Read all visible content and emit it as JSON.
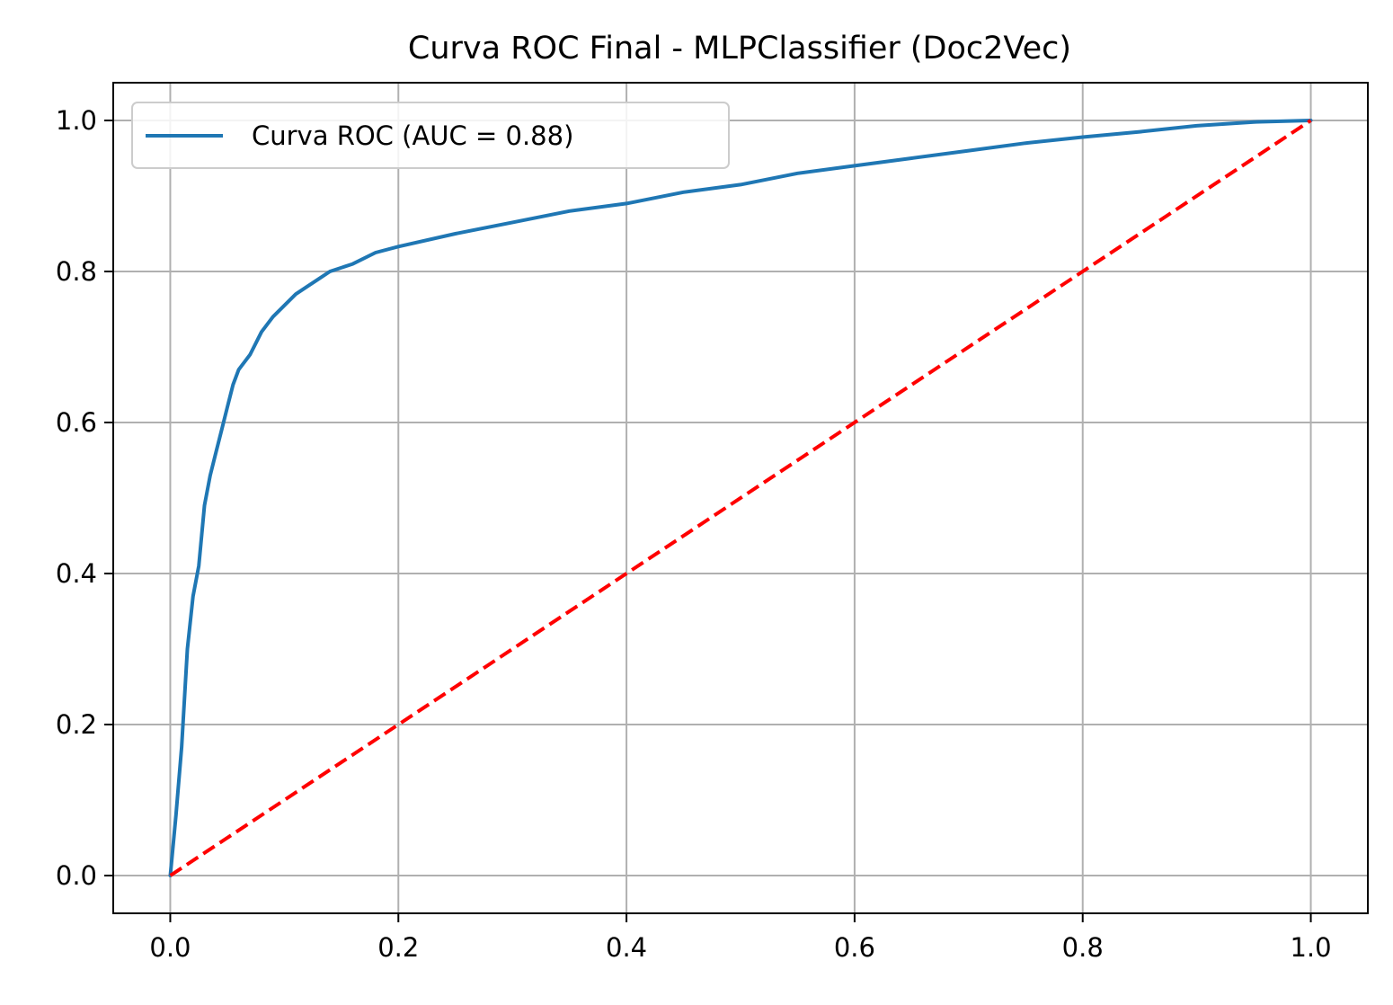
{
  "chart_data": {
    "type": "line",
    "title": "Curva ROC Final - MLPClassifier (Doc2Vec)",
    "xlabel": "",
    "ylabel": "",
    "xlim": [
      -0.05,
      1.05
    ],
    "ylim": [
      -0.05,
      1.05
    ],
    "xticks": [
      "0.0",
      "0.2",
      "0.4",
      "0.6",
      "0.8",
      "1.0"
    ],
    "yticks": [
      "0.0",
      "0.2",
      "0.4",
      "0.6",
      "0.8",
      "1.0"
    ],
    "grid": true,
    "legend_position": "top-left",
    "series": [
      {
        "name": "Curva ROC (AUC = 0.88)",
        "color": "#1f77b4",
        "style": "solid",
        "x": [
          0.0,
          0.005,
          0.01,
          0.015,
          0.02,
          0.025,
          0.03,
          0.035,
          0.04,
          0.045,
          0.05,
          0.055,
          0.06,
          0.07,
          0.08,
          0.09,
          0.1,
          0.11,
          0.12,
          0.13,
          0.14,
          0.16,
          0.18,
          0.2,
          0.25,
          0.3,
          0.35,
          0.4,
          0.45,
          0.5,
          0.55,
          0.6,
          0.65,
          0.7,
          0.75,
          0.8,
          0.85,
          0.9,
          0.95,
          1.0
        ],
        "y": [
          0.0,
          0.08,
          0.17,
          0.3,
          0.37,
          0.41,
          0.49,
          0.53,
          0.56,
          0.59,
          0.62,
          0.65,
          0.67,
          0.69,
          0.72,
          0.74,
          0.755,
          0.77,
          0.78,
          0.79,
          0.8,
          0.81,
          0.825,
          0.833,
          0.85,
          0.865,
          0.88,
          0.89,
          0.905,
          0.915,
          0.93,
          0.94,
          0.95,
          0.96,
          0.97,
          0.978,
          0.985,
          0.993,
          0.998,
          1.0
        ]
      },
      {
        "name": "",
        "color": "#ff0000",
        "style": "dashed",
        "x": [
          0.0,
          1.0
        ],
        "y": [
          0.0,
          1.0
        ]
      }
    ]
  }
}
